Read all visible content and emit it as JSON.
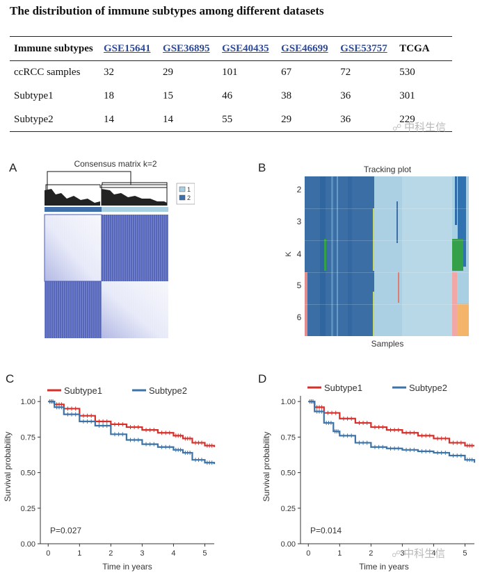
{
  "title": "The distribution of immune subtypes among different datasets",
  "table": {
    "headers": [
      "Immune subtypes",
      "GSE15641",
      "GSE36895",
      "GSE40435",
      "GSE46699",
      "GSE53757",
      "TCGA"
    ],
    "rows": [
      [
        "ccRCC samples",
        "32",
        "29",
        "101",
        "67",
        "72",
        "530"
      ],
      [
        "Subtype1",
        "18",
        "15",
        "46",
        "38",
        "36",
        "301"
      ],
      [
        "Subtype2",
        "14",
        "14",
        "55",
        "29",
        "36",
        "229"
      ]
    ]
  },
  "watermark": {
    "text": "中科生信",
    "icon": "wechat-icon"
  },
  "panels": {
    "A": {
      "label": "A",
      "title": "Consensus matrix k=2",
      "legend": [
        "1",
        "2"
      ],
      "colors": {
        "cluster1": "#a9cfe2",
        "cluster2": "#3e6fa8",
        "matrix_dark": "#4a5cb8",
        "matrix_light": "#ffffff"
      },
      "split_fraction": 0.45
    },
    "B": {
      "label": "B",
      "title": "Tracking plot",
      "ylabel": "K",
      "xlabel": "Samples",
      "k_values": [
        "2",
        "3",
        "4",
        "5",
        "6"
      ]
    },
    "C": {
      "label": "C"
    },
    "D": {
      "label": "D"
    }
  },
  "chart_data": [
    {
      "type": "line",
      "panel": "C",
      "title": "",
      "xlabel": "Time in years",
      "ylabel": "Survival probability",
      "xlim": [
        -0.25,
        5.3
      ],
      "ylim": [
        0,
        1.04
      ],
      "xticks": [
        "0",
        "1",
        "2",
        "3",
        "4",
        "5"
      ],
      "yticks": [
        "0.00",
        "0.25",
        "0.50",
        "0.75",
        "1.00"
      ],
      "legend": [
        "Subtype1",
        "Subtype2"
      ],
      "annotation": "P=0.027",
      "series": [
        {
          "name": "Subtype1",
          "color": "#d62f2a",
          "x": [
            0,
            0.2,
            0.5,
            1.0,
            1.5,
            2.0,
            2.5,
            3.0,
            3.5,
            4.0,
            4.3,
            4.6,
            5.0,
            5.3
          ],
          "y": [
            1.0,
            0.98,
            0.95,
            0.9,
            0.86,
            0.84,
            0.82,
            0.8,
            0.78,
            0.76,
            0.74,
            0.71,
            0.69,
            0.68
          ]
        },
        {
          "name": "Subtype2",
          "color": "#3b73a8",
          "x": [
            0,
            0.2,
            0.5,
            1.0,
            1.5,
            2.0,
            2.5,
            3.0,
            3.5,
            4.0,
            4.3,
            4.6,
            5.0,
            5.3
          ],
          "y": [
            1.0,
            0.96,
            0.91,
            0.86,
            0.83,
            0.77,
            0.73,
            0.7,
            0.68,
            0.66,
            0.64,
            0.59,
            0.57,
            0.56
          ]
        }
      ]
    },
    {
      "type": "line",
      "panel": "D",
      "title": "",
      "xlabel": "Time in years",
      "ylabel": "Survival probability",
      "xlim": [
        -0.25,
        5.3
      ],
      "ylim": [
        0,
        1.04
      ],
      "xticks": [
        "0",
        "1",
        "2",
        "3",
        "4",
        "5"
      ],
      "yticks": [
        "0.00",
        "0.25",
        "0.50",
        "0.75",
        "1.00"
      ],
      "legend": [
        "Subtype1",
        "Subtype2"
      ],
      "annotation": "P=0.014",
      "series": [
        {
          "name": "Subtype1",
          "color": "#d62f2a",
          "x": [
            0,
            0.2,
            0.5,
            1.0,
            1.5,
            2.0,
            2.5,
            3.0,
            3.5,
            4.0,
            4.5,
            5.0,
            5.3
          ],
          "y": [
            1.0,
            0.96,
            0.92,
            0.88,
            0.85,
            0.82,
            0.8,
            0.78,
            0.76,
            0.74,
            0.71,
            0.69,
            0.69
          ]
        },
        {
          "name": "Subtype2",
          "color": "#3b73a8",
          "x": [
            0,
            0.2,
            0.5,
            0.8,
            1.0,
            1.5,
            2.0,
            2.5,
            3.0,
            3.5,
            4.0,
            4.5,
            5.0,
            5.3
          ],
          "y": [
            1.0,
            0.93,
            0.85,
            0.79,
            0.76,
            0.71,
            0.68,
            0.67,
            0.66,
            0.65,
            0.64,
            0.62,
            0.59,
            0.57
          ]
        }
      ]
    }
  ]
}
